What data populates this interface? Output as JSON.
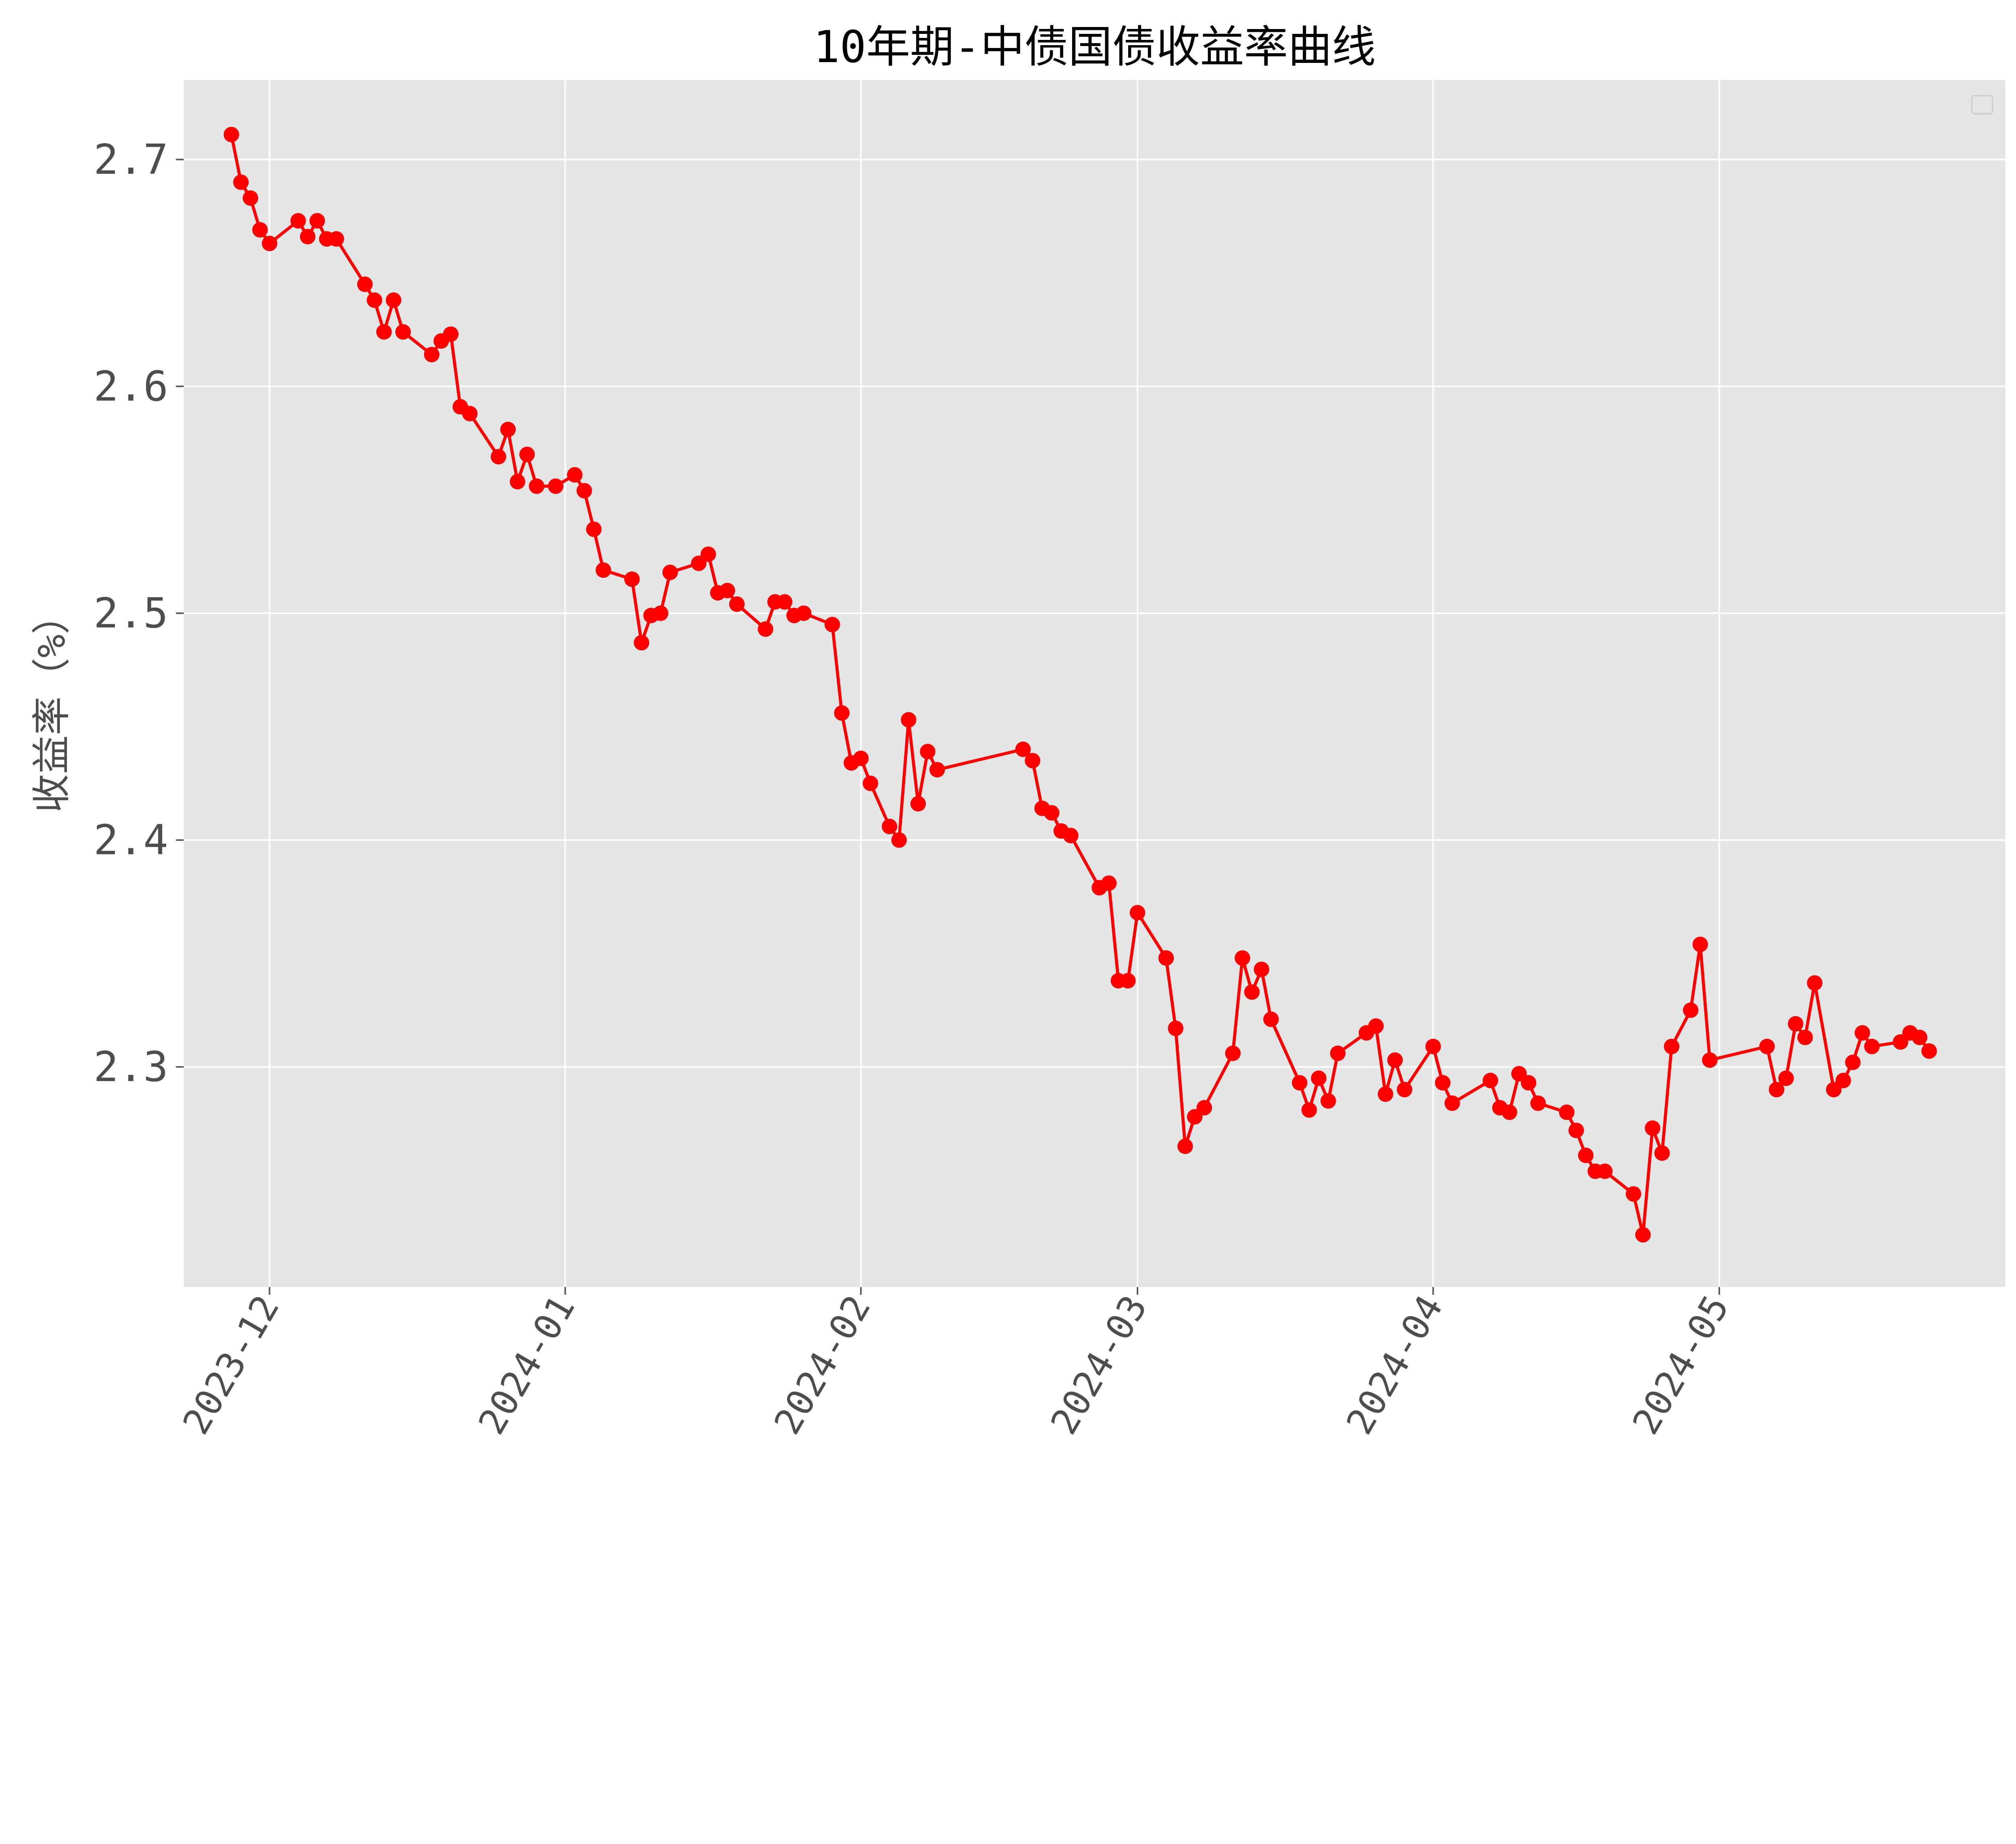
{
  "chart_data": {
    "type": "line",
    "title": "10年期-中债国债收益率曲线",
    "xlabel": "",
    "ylabel": "收益率（%）",
    "ylim": [
      2.203,
      2.735
    ],
    "xlim": [
      "2023-11-22",
      "2024-05-31"
    ],
    "grid": true,
    "legend": {
      "placement": "top-right",
      "entries": []
    },
    "style": {
      "background": "#e5e5e5",
      "grid_color": "#ffffff",
      "line_color": "#ff0000",
      "marker": "circle"
    },
    "x_ticks": [
      "2023-12-01",
      "2024-01-01",
      "2024-02-01",
      "2024-03-01",
      "2024-04-01",
      "2024-05-01"
    ],
    "x_tick_labels": [
      "2023-12",
      "2024-01",
      "2024-02",
      "2024-03",
      "2024-04",
      "2024-05"
    ],
    "y_ticks": [
      2.3,
      2.4,
      2.5,
      2.6,
      2.7
    ],
    "y_tick_labels": [
      "2.3",
      "2.4",
      "2.5",
      "2.6",
      "2.7"
    ],
    "series": [
      {
        "points": [
          [
            "2023-11-27",
            2.711
          ],
          [
            "2023-11-28",
            2.69
          ],
          [
            "2023-11-29",
            2.683
          ],
          [
            "2023-11-30",
            2.669
          ],
          [
            "2023-12-01",
            2.663
          ],
          [
            "2023-12-04",
            2.673
          ],
          [
            "2023-12-05",
            2.666
          ],
          [
            "2023-12-06",
            2.673
          ],
          [
            "2023-12-07",
            2.665
          ],
          [
            "2023-12-08",
            2.665
          ],
          [
            "2023-12-11",
            2.645
          ],
          [
            "2023-12-12",
            2.638
          ],
          [
            "2023-12-13",
            2.624
          ],
          [
            "2023-12-14",
            2.638
          ],
          [
            "2023-12-15",
            2.624
          ],
          [
            "2023-12-18",
            2.614
          ],
          [
            "2023-12-19",
            2.62
          ],
          [
            "2023-12-20",
            2.623
          ],
          [
            "2023-12-21",
            2.591
          ],
          [
            "2023-12-22",
            2.588
          ],
          [
            "2023-12-25",
            2.569
          ],
          [
            "2023-12-26",
            2.581
          ],
          [
            "2023-12-27",
            2.558
          ],
          [
            "2023-12-28",
            2.57
          ],
          [
            "2023-12-29",
            2.556
          ],
          [
            "2023-12-31",
            2.556
          ],
          [
            "2024-01-02",
            2.561
          ],
          [
            "2024-01-03",
            2.554
          ],
          [
            "2024-01-04",
            2.537
          ],
          [
            "2024-01-05",
            2.519
          ],
          [
            "2024-01-08",
            2.515
          ],
          [
            "2024-01-09",
            2.487
          ],
          [
            "2024-01-10",
            2.499
          ],
          [
            "2024-01-11",
            2.5
          ],
          [
            "2024-01-12",
            2.518
          ],
          [
            "2024-01-15",
            2.522
          ],
          [
            "2024-01-16",
            2.526
          ],
          [
            "2024-01-17",
            2.509
          ],
          [
            "2024-01-18",
            2.51
          ],
          [
            "2024-01-19",
            2.504
          ],
          [
            "2024-01-22",
            2.493
          ],
          [
            "2024-01-23",
            2.505
          ],
          [
            "2024-01-24",
            2.505
          ],
          [
            "2024-01-25",
            2.499
          ],
          [
            "2024-01-26",
            2.5
          ],
          [
            "2024-01-29",
            2.495
          ],
          [
            "2024-01-30",
            2.456
          ],
          [
            "2024-01-31",
            2.434
          ],
          [
            "2024-02-01",
            2.436
          ],
          [
            "2024-02-02",
            2.425
          ],
          [
            "2024-02-04",
            2.406
          ],
          [
            "2024-02-05",
            2.4
          ],
          [
            "2024-02-06",
            2.453
          ],
          [
            "2024-02-07",
            2.416
          ],
          [
            "2024-02-08",
            2.439
          ],
          [
            "2024-02-09",
            2.431
          ],
          [
            "2024-02-18",
            2.44
          ],
          [
            "2024-02-19",
            2.435
          ],
          [
            "2024-02-20",
            2.414
          ],
          [
            "2024-02-21",
            2.412
          ],
          [
            "2024-02-22",
            2.404
          ],
          [
            "2024-02-23",
            2.402
          ],
          [
            "2024-02-26",
            2.379
          ],
          [
            "2024-02-27",
            2.381
          ],
          [
            "2024-02-28",
            2.338
          ],
          [
            "2024-02-29",
            2.338
          ],
          [
            "2024-03-01",
            2.368
          ],
          [
            "2024-03-04",
            2.348
          ],
          [
            "2024-03-05",
            2.317
          ],
          [
            "2024-03-06",
            2.265
          ],
          [
            "2024-03-07",
            2.278
          ],
          [
            "2024-03-08",
            2.282
          ],
          [
            "2024-03-11",
            2.306
          ],
          [
            "2024-03-12",
            2.348
          ],
          [
            "2024-03-13",
            2.333
          ],
          [
            "2024-03-14",
            2.343
          ],
          [
            "2024-03-15",
            2.321
          ],
          [
            "2024-03-18",
            2.293
          ],
          [
            "2024-03-19",
            2.281
          ],
          [
            "2024-03-20",
            2.295
          ],
          [
            "2024-03-21",
            2.285
          ],
          [
            "2024-03-22",
            2.306
          ],
          [
            "2024-03-25",
            2.315
          ],
          [
            "2024-03-26",
            2.318
          ],
          [
            "2024-03-27",
            2.288
          ],
          [
            "2024-03-28",
            2.303
          ],
          [
            "2024-03-29",
            2.29
          ],
          [
            "2024-04-01",
            2.309
          ],
          [
            "2024-04-02",
            2.293
          ],
          [
            "2024-04-03",
            2.284
          ],
          [
            "2024-04-07",
            2.294
          ],
          [
            "2024-04-08",
            2.282
          ],
          [
            "2024-04-09",
            2.28
          ],
          [
            "2024-04-10",
            2.297
          ],
          [
            "2024-04-11",
            2.293
          ],
          [
            "2024-04-12",
            2.284
          ],
          [
            "2024-04-15",
            2.28
          ],
          [
            "2024-04-16",
            2.272
          ],
          [
            "2024-04-17",
            2.261
          ],
          [
            "2024-04-18",
            2.254
          ],
          [
            "2024-04-19",
            2.254
          ],
          [
            "2024-04-22",
            2.244
          ],
          [
            "2024-04-23",
            2.226
          ],
          [
            "2024-04-24",
            2.273
          ],
          [
            "2024-04-25",
            2.262
          ],
          [
            "2024-04-26",
            2.309
          ],
          [
            "2024-04-28",
            2.325
          ],
          [
            "2024-04-29",
            2.354
          ],
          [
            "2024-04-30",
            2.303
          ],
          [
            "2024-05-06",
            2.309
          ],
          [
            "2024-05-07",
            2.29
          ],
          [
            "2024-05-08",
            2.295
          ],
          [
            "2024-05-09",
            2.319
          ],
          [
            "2024-05-10",
            2.313
          ],
          [
            "2024-05-11",
            2.337
          ],
          [
            "2024-05-13",
            2.29
          ],
          [
            "2024-05-14",
            2.294
          ],
          [
            "2024-05-15",
            2.302
          ],
          [
            "2024-05-16",
            2.315
          ],
          [
            "2024-05-17",
            2.309
          ],
          [
            "2024-05-20",
            2.311
          ],
          [
            "2024-05-21",
            2.315
          ],
          [
            "2024-05-22",
            2.313
          ],
          [
            "2024-05-23",
            2.307
          ]
        ]
      }
    ]
  }
}
